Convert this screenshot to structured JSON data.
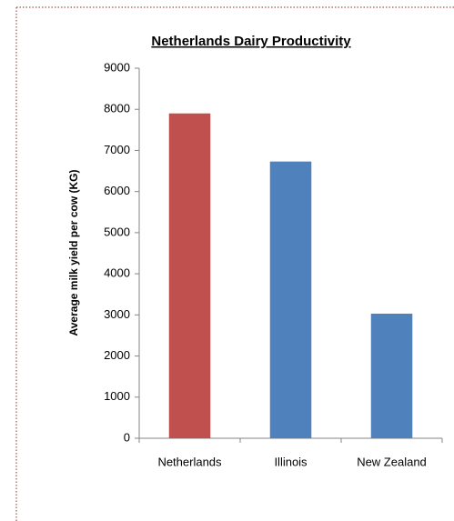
{
  "chart_data": {
    "type": "bar",
    "title": "Netherlands Dairy Productivity",
    "ylabel": "Average milk yield per cow (KG)",
    "categories": [
      "Netherlands",
      "Illinois",
      "New Zealand"
    ],
    "values": [
      7900,
      6730,
      3030
    ],
    "colors": [
      "#c0504d",
      "#4f81bd",
      "#4f81bd"
    ],
    "ylim": [
      0,
      9000
    ],
    "yticks": [
      0,
      1000,
      2000,
      3000,
      4000,
      5000,
      6000,
      7000,
      8000,
      9000
    ],
    "grid": false
  }
}
